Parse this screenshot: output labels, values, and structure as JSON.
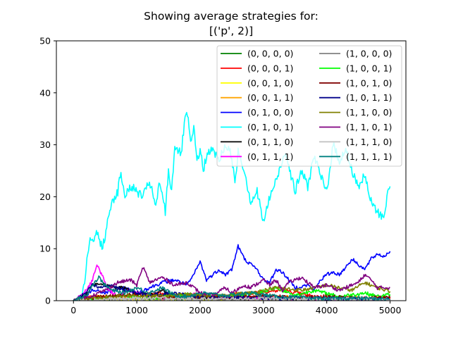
{
  "chart_data": {
    "type": "line",
    "title": [
      "Showing average strategies for:",
      "[('p', 2)]"
    ],
    "xlabel": "",
    "ylabel": "",
    "xlim": [
      -270,
      5250
    ],
    "ylim": [
      0,
      50
    ],
    "xticks": [
      0,
      1000,
      2000,
      3000,
      4000,
      5000
    ],
    "yticks": [
      0,
      10,
      20,
      30,
      40,
      50
    ],
    "grid": false,
    "legend": {
      "placement": "top-right",
      "columns": 2
    },
    "series": [
      {
        "name": "(0, 0, 0, 0)",
        "color": "#008000",
        "values": [
          [
            0,
            0
          ],
          [
            300,
            0.3
          ],
          [
            800,
            0.2
          ],
          [
            1500,
            0.4
          ],
          [
            2500,
            0.2
          ],
          [
            3500,
            0.3
          ],
          [
            4500,
            0.2
          ],
          [
            5000,
            0.2
          ]
        ]
      },
      {
        "name": "(0, 0, 0, 1)",
        "color": "#ff0000",
        "values": [
          [
            0,
            0
          ],
          [
            300,
            0.8
          ],
          [
            700,
            0.4
          ],
          [
            1300,
            1.5
          ],
          [
            2000,
            0.6
          ],
          [
            2700,
            1.4
          ],
          [
            3300,
            2.0
          ],
          [
            3800,
            0.8
          ],
          [
            4400,
            0.5
          ],
          [
            5000,
            0.4
          ]
        ]
      },
      {
        "name": "(0, 0, 1, 0)",
        "color": "#ffff00",
        "values": [
          [
            0,
            0
          ],
          [
            500,
            0.2
          ],
          [
            1500,
            0.3
          ],
          [
            2500,
            0.2
          ],
          [
            3500,
            0.2
          ],
          [
            5000,
            0.1
          ]
        ]
      },
      {
        "name": "(0, 0, 1, 1)",
        "color": "#ffa500",
        "values": [
          [
            0,
            0
          ],
          [
            400,
            0.8
          ],
          [
            900,
            0.5
          ],
          [
            1600,
            1.0
          ],
          [
            2300,
            0.4
          ],
          [
            3000,
            0.8
          ],
          [
            3800,
            0.5
          ],
          [
            4500,
            0.6
          ],
          [
            5000,
            0.4
          ]
        ]
      },
      {
        "name": "(0, 1, 0, 0)",
        "color": "#0000ff",
        "values": [
          [
            0,
            0
          ],
          [
            150,
            0.5
          ],
          [
            300,
            2.0
          ],
          [
            500,
            1.5
          ],
          [
            800,
            2.5
          ],
          [
            1000,
            1.5
          ],
          [
            1200,
            2.5
          ],
          [
            1400,
            3.5
          ],
          [
            1600,
            4.0
          ],
          [
            1800,
            3.0
          ],
          [
            1900,
            5.0
          ],
          [
            2000,
            7.5
          ],
          [
            2100,
            4.0
          ],
          [
            2300,
            6.0
          ],
          [
            2400,
            5.0
          ],
          [
            2500,
            6.0
          ],
          [
            2600,
            10.5
          ],
          [
            2700,
            8.0
          ],
          [
            2800,
            7.0
          ],
          [
            2900,
            6.0
          ],
          [
            3000,
            4.0
          ],
          [
            3100,
            3.5
          ],
          [
            3200,
            6.0
          ],
          [
            3300,
            5.5
          ],
          [
            3400,
            4.0
          ],
          [
            3500,
            2.5
          ],
          [
            3700,
            3.0
          ],
          [
            3800,
            2.0
          ],
          [
            3900,
            4.0
          ],
          [
            4000,
            5.0
          ],
          [
            4100,
            5.5
          ],
          [
            4200,
            5.0
          ],
          [
            4300,
            6.5
          ],
          [
            4400,
            8.0
          ],
          [
            4500,
            7.0
          ],
          [
            4600,
            6.0
          ],
          [
            4700,
            8.0
          ],
          [
            4800,
            9.0
          ],
          [
            4900,
            8.5
          ],
          [
            5000,
            9.5
          ]
        ]
      },
      {
        "name": "(0, 1, 0, 1)",
        "color": "#00ffff",
        "values": [
          [
            100,
            0
          ],
          [
            150,
            2
          ],
          [
            200,
            6
          ],
          [
            250,
            11.5
          ],
          [
            300,
            11
          ],
          [
            350,
            13
          ],
          [
            400,
            12
          ],
          [
            450,
            10.5
          ],
          [
            500,
            12
          ],
          [
            550,
            16
          ],
          [
            600,
            19
          ],
          [
            650,
            20
          ],
          [
            700,
            21
          ],
          [
            750,
            25
          ],
          [
            800,
            20
          ],
          [
            900,
            22
          ],
          [
            1000,
            21
          ],
          [
            1100,
            20
          ],
          [
            1200,
            23
          ],
          [
            1300,
            18
          ],
          [
            1350,
            22
          ],
          [
            1400,
            21
          ],
          [
            1450,
            17
          ],
          [
            1500,
            25
          ],
          [
            1550,
            21
          ],
          [
            1600,
            30
          ],
          [
            1700,
            28
          ],
          [
            1750,
            34
          ],
          [
            1800,
            36
          ],
          [
            1850,
            30
          ],
          [
            1900,
            33
          ],
          [
            1950,
            27
          ],
          [
            2000,
            29
          ],
          [
            2050,
            25
          ],
          [
            2100,
            28
          ],
          [
            2200,
            29
          ],
          [
            2300,
            27
          ],
          [
            2400,
            30
          ],
          [
            2500,
            28
          ],
          [
            2550,
            22
          ],
          [
            2600,
            29
          ],
          [
            2700,
            25
          ],
          [
            2800,
            19
          ],
          [
            2900,
            21
          ],
          [
            3000,
            15
          ],
          [
            3100,
            20
          ],
          [
            3200,
            23
          ],
          [
            3300,
            27
          ],
          [
            3350,
            29
          ],
          [
            3400,
            26
          ],
          [
            3500,
            21
          ],
          [
            3600,
            25
          ],
          [
            3700,
            22
          ],
          [
            3800,
            28
          ],
          [
            3900,
            24
          ],
          [
            4000,
            21
          ],
          [
            4100,
            30
          ],
          [
            4200,
            27
          ],
          [
            4300,
            29
          ],
          [
            4400,
            25
          ],
          [
            4500,
            22
          ],
          [
            4600,
            24
          ],
          [
            4700,
            19
          ],
          [
            4800,
            17
          ],
          [
            4900,
            16
          ],
          [
            4950,
            20
          ],
          [
            5000,
            22
          ]
        ]
      },
      {
        "name": "(0, 1, 1, 0)",
        "color": "#000000",
        "values": [
          [
            0,
            0
          ],
          [
            200,
            1
          ],
          [
            300,
            3
          ],
          [
            400,
            3.5
          ],
          [
            500,
            3
          ],
          [
            600,
            2.5
          ],
          [
            800,
            2.5
          ],
          [
            1000,
            1.5
          ],
          [
            1200,
            1.0
          ],
          [
            1400,
            2.0
          ],
          [
            1600,
            1.0
          ],
          [
            2000,
            0.5
          ],
          [
            3000,
            0.3
          ],
          [
            5000,
            0.2
          ]
        ]
      },
      {
        "name": "(0, 1, 1, 1)",
        "color": "#ff00ff",
        "values": [
          [
            0,
            0
          ],
          [
            200,
            2
          ],
          [
            300,
            4
          ],
          [
            370,
            6.8
          ],
          [
            450,
            5
          ],
          [
            550,
            2
          ],
          [
            700,
            1
          ],
          [
            900,
            2
          ],
          [
            1100,
            1
          ],
          [
            1400,
            0.5
          ],
          [
            2000,
            1.5
          ],
          [
            2200,
            0.5
          ],
          [
            2500,
            0.8
          ],
          [
            3000,
            0.3
          ],
          [
            3500,
            0.5
          ],
          [
            4000,
            0.3
          ],
          [
            5000,
            0.2
          ]
        ]
      },
      {
        "name": "(1, 0, 0, 0)",
        "color": "#808080",
        "values": [
          [
            0,
            0
          ],
          [
            500,
            0.3
          ],
          [
            1500,
            0.4
          ],
          [
            2500,
            0.2
          ],
          [
            3500,
            0.4
          ],
          [
            4500,
            0.2
          ],
          [
            5000,
            0.3
          ]
        ]
      },
      {
        "name": "(1, 0, 0, 1)",
        "color": "#00ff00",
        "values": [
          [
            0,
            0
          ],
          [
            400,
            0.5
          ],
          [
            800,
            1.0
          ],
          [
            1300,
            0.6
          ],
          [
            1800,
            1.2
          ],
          [
            2400,
            0.8
          ],
          [
            2900,
            1.5
          ],
          [
            3200,
            2.5
          ],
          [
            3500,
            1.0
          ],
          [
            3800,
            2.0
          ],
          [
            4200,
            0.8
          ],
          [
            4600,
            1.5
          ],
          [
            4800,
            0.8
          ],
          [
            5000,
            1.2
          ]
        ]
      },
      {
        "name": "(1, 0, 1, 0)",
        "color": "#800000",
        "values": [
          [
            0,
            0
          ],
          [
            500,
            0.8
          ],
          [
            1000,
            1.2
          ],
          [
            1500,
            0.6
          ],
          [
            2000,
            0.8
          ],
          [
            2500,
            0.5
          ],
          [
            3000,
            1.0
          ],
          [
            3500,
            0.6
          ],
          [
            4000,
            0.8
          ],
          [
            4500,
            0.5
          ],
          [
            5000,
            0.6
          ]
        ]
      },
      {
        "name": "(1, 0, 1, 1)",
        "color": "#00008b",
        "values": [
          [
            0,
            0
          ],
          [
            200,
            1.5
          ],
          [
            300,
            3.0
          ],
          [
            400,
            2.5
          ],
          [
            600,
            3.0
          ],
          [
            800,
            2.0
          ],
          [
            1000,
            1.5
          ],
          [
            1200,
            1.0
          ],
          [
            1500,
            1.5
          ],
          [
            2000,
            0.8
          ],
          [
            3000,
            0.5
          ],
          [
            4000,
            0.4
          ],
          [
            5000,
            0.3
          ]
        ]
      },
      {
        "name": "(1, 1, 0, 0)",
        "color": "#808000",
        "values": [
          [
            0,
            0
          ],
          [
            400,
            0.5
          ],
          [
            800,
            1.0
          ],
          [
            1300,
            0.8
          ],
          [
            1800,
            1.2
          ],
          [
            2300,
            1.0
          ],
          [
            2800,
            1.5
          ],
          [
            3200,
            2.5
          ],
          [
            3600,
            2.0
          ],
          [
            4000,
            3.0
          ],
          [
            4400,
            2.0
          ],
          [
            4600,
            3.5
          ],
          [
            4800,
            2.5
          ],
          [
            5000,
            1.8
          ]
        ]
      },
      {
        "name": "(1, 1, 0, 1)",
        "color": "#800080",
        "values": [
          [
            0,
            0
          ],
          [
            300,
            1
          ],
          [
            500,
            2
          ],
          [
            700,
            3.5
          ],
          [
            900,
            4.0
          ],
          [
            1000,
            3.0
          ],
          [
            1100,
            6.5
          ],
          [
            1200,
            3.5
          ],
          [
            1400,
            4.5
          ],
          [
            1600,
            3.0
          ],
          [
            1800,
            3.5
          ],
          [
            2000,
            1.5
          ],
          [
            2200,
            1.0
          ],
          [
            2400,
            2.5
          ],
          [
            2500,
            1.5
          ],
          [
            2700,
            3.0
          ],
          [
            2800,
            2.5
          ],
          [
            3000,
            4.0
          ],
          [
            3100,
            3.0
          ],
          [
            3200,
            4.0
          ],
          [
            3300,
            2.0
          ],
          [
            3400,
            3.5
          ],
          [
            3600,
            4.5
          ],
          [
            3800,
            2.5
          ],
          [
            4000,
            3.0
          ],
          [
            4200,
            2.0
          ],
          [
            4400,
            3.0
          ],
          [
            4500,
            3.5
          ],
          [
            4600,
            5.0
          ],
          [
            4700,
            4.0
          ],
          [
            4800,
            2.5
          ],
          [
            5000,
            2.5
          ]
        ]
      },
      {
        "name": "(1, 1, 1, 0)",
        "color": "#c0c0c0",
        "values": [
          [
            0,
            0
          ],
          [
            600,
            0.3
          ],
          [
            1400,
            0.5
          ],
          [
            2200,
            0.3
          ],
          [
            3000,
            0.4
          ],
          [
            3800,
            0.3
          ],
          [
            4600,
            0.4
          ],
          [
            5000,
            0.2
          ]
        ]
      },
      {
        "name": "(1, 1, 1, 1)",
        "color": "#008080",
        "values": [
          [
            0,
            0
          ],
          [
            200,
            1
          ],
          [
            300,
            3
          ],
          [
            400,
            4.5
          ],
          [
            500,
            3
          ],
          [
            600,
            2
          ],
          [
            800,
            1.5
          ],
          [
            1000,
            2.5
          ],
          [
            1200,
            1.5
          ],
          [
            1400,
            2.5
          ],
          [
            1600,
            1.0
          ],
          [
            1800,
            0.8
          ],
          [
            2000,
            1.5
          ],
          [
            2400,
            1.0
          ],
          [
            2800,
            1.5
          ],
          [
            3200,
            0.8
          ],
          [
            3600,
            0.6
          ],
          [
            4000,
            0.4
          ],
          [
            4400,
            0.5
          ],
          [
            5000,
            0.3
          ]
        ]
      }
    ]
  }
}
